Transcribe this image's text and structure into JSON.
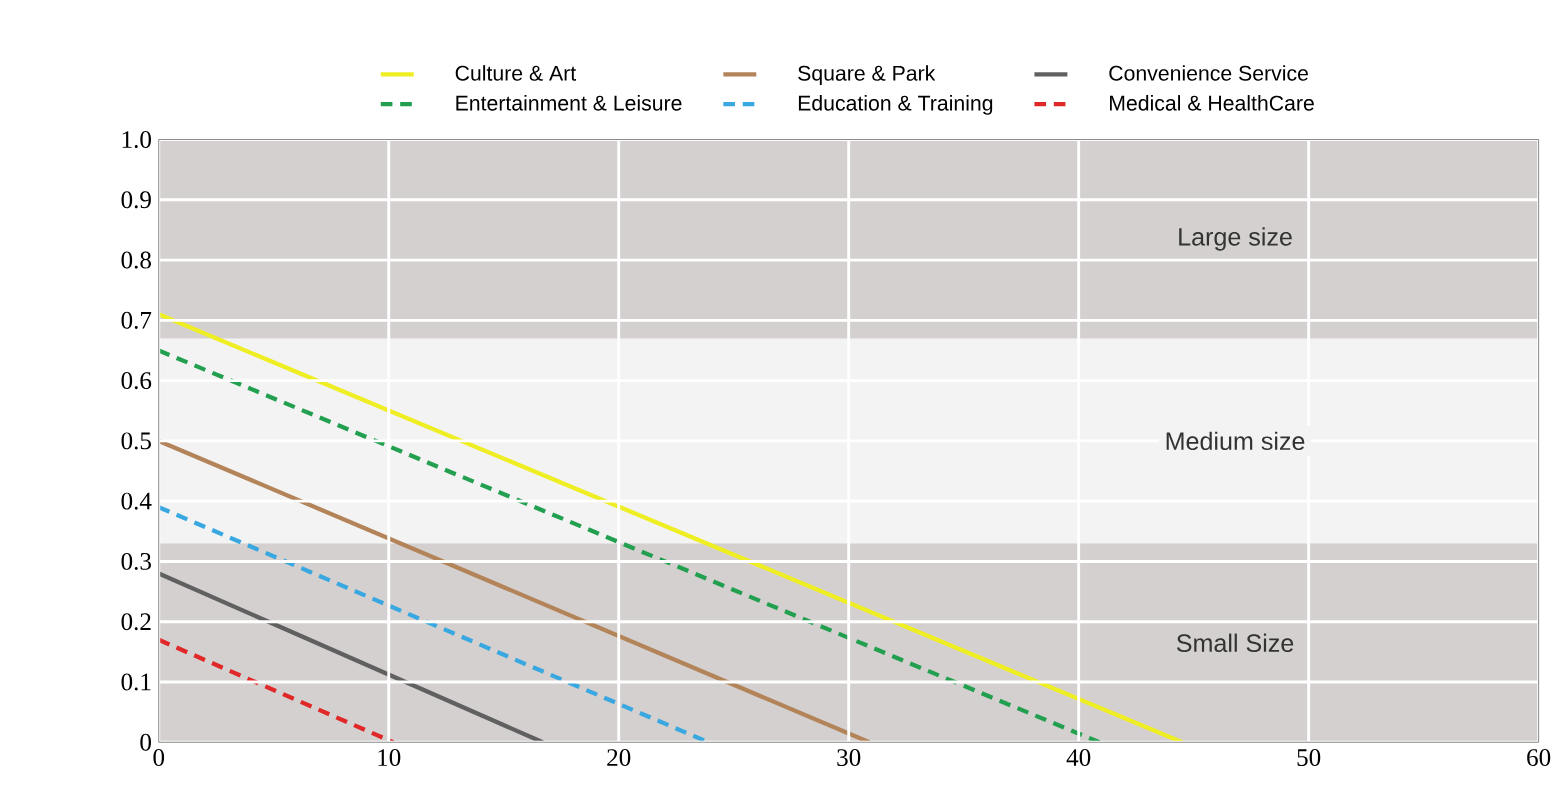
{
  "chart_data": {
    "type": "line",
    "series": [
      {
        "name": "Culture & Art",
        "color": "#eeee22",
        "line_style": "solid",
        "x": [
          0,
          44.5
        ],
        "values": [
          0.71,
          0
        ]
      },
      {
        "name": "Square & Park",
        "color": "#b38459",
        "line_style": "solid",
        "x": [
          0,
          30.9
        ],
        "values": [
          0.5,
          0
        ]
      },
      {
        "name": "Convenience Service",
        "color": "#606060",
        "line_style": "solid",
        "x": [
          0,
          16.7
        ],
        "values": [
          0.28,
          0
        ]
      },
      {
        "name": "Entertainment & Leisure",
        "color": "#22a050",
        "line_style": "dashed",
        "x": [
          0,
          40.9
        ],
        "values": [
          0.65,
          0
        ]
      },
      {
        "name": "Education & Training",
        "color": "#3aa8e0",
        "line_style": "dashed",
        "x": [
          0,
          23.9
        ],
        "values": [
          0.39,
          0
        ]
      },
      {
        "name": "Medical & HealthCare",
        "color": "#e02828",
        "line_style": "dashed",
        "x": [
          0,
          10.2
        ],
        "values": [
          0.17,
          0
        ]
      }
    ],
    "bands": [
      {
        "axis": "y",
        "from": 0,
        "to": 0.33,
        "label": "Small Size",
        "color": "#d4d0cf"
      },
      {
        "axis": "y",
        "from": 0.33,
        "to": 0.67,
        "label": "Medium size",
        "color": "#f3f3f3"
      },
      {
        "axis": "y",
        "from": 0.67,
        "to": 1.0,
        "label": "Large size",
        "color": "#d4d0cf"
      }
    ],
    "xlim": [
      0,
      60
    ],
    "xticks": [
      0,
      10,
      20,
      30,
      40,
      50,
      60
    ],
    "ylim": [
      0,
      1.0
    ],
    "yticks": [
      {
        "value": 0,
        "label": "0"
      },
      {
        "value": 0.1,
        "label": "0.1"
      },
      {
        "value": 0.2,
        "label": "0.2"
      },
      {
        "value": 0.3,
        "label": "0.3"
      },
      {
        "value": 0.4,
        "label": "0.4"
      },
      {
        "value": 0.5,
        "label": "0.5"
      },
      {
        "value": 0.6,
        "label": "0.6"
      },
      {
        "value": 0.7,
        "label": "0.7"
      },
      {
        "value": 0.8,
        "label": "0.8"
      },
      {
        "value": 0.9,
        "label": "0.9"
      },
      {
        "value": 1.0,
        "label": "1.0"
      }
    ],
    "grid": true,
    "legend": "top",
    "marker": "none"
  }
}
